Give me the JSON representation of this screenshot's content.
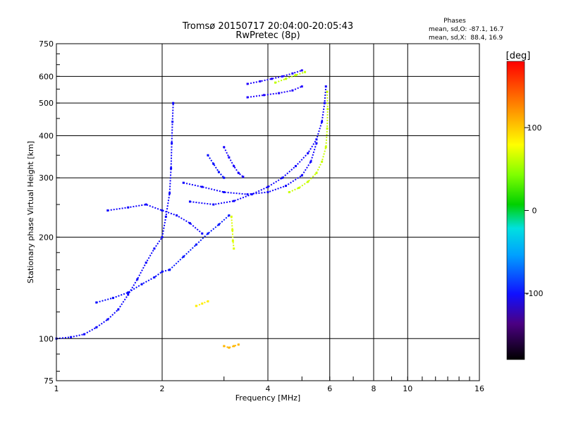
{
  "chart_data": {
    "type": "scatter",
    "title": "Tromsø 20150717 20:04:00-20:05:43",
    "subtitle": "RwPretec (8p)",
    "xlabel": "Frequency [MHz]",
    "ylabel": "Stationary phase Virtual Height [km]",
    "x_scale": "log",
    "y_scale": "log",
    "xlim": [
      1,
      16
    ],
    "ylim": [
      75,
      750
    ],
    "x_ticks": [
      1,
      2,
      4,
      6,
      8,
      10,
      16
    ],
    "x_tick_labels": [
      "1",
      "2",
      "4",
      "6",
      "8",
      "10",
      "16"
    ],
    "y_ticks": [
      75,
      100,
      200,
      300,
      400,
      500,
      600,
      750
    ],
    "y_tick_labels": [
      "75",
      "100",
      "200",
      "300",
      "400",
      "500",
      "600",
      "750"
    ],
    "grid": true,
    "stats": {
      "title": "Phases",
      "line_o": "mean, sd,O: -87.1, 16.7",
      "line_x": "mean, sd,X:  88.4, 16.9"
    },
    "colorbar": {
      "label": "[deg]",
      "range": [
        -180,
        180
      ],
      "ticks": [
        100,
        0,
        -100
      ],
      "tick_labels": [
        "100",
        "0",
        "-100"
      ]
    },
    "traces": [
      {
        "phase": -105,
        "points": [
          [
            1.0,
            100
          ],
          [
            1.1,
            101
          ],
          [
            1.2,
            103
          ],
          [
            1.3,
            108
          ],
          [
            1.4,
            114
          ],
          [
            1.5,
            122
          ],
          [
            1.6,
            135
          ],
          [
            1.7,
            150
          ],
          [
            1.8,
            168
          ],
          [
            1.9,
            185
          ],
          [
            2.0,
            200
          ],
          [
            2.05,
            230
          ],
          [
            2.1,
            270
          ],
          [
            2.12,
            320
          ],
          [
            2.13,
            380
          ],
          [
            2.14,
            440
          ],
          [
            2.15,
            500
          ]
        ]
      },
      {
        "phase": -100,
        "points": [
          [
            1.3,
            128
          ],
          [
            1.45,
            132
          ],
          [
            1.6,
            137
          ],
          [
            1.75,
            145
          ],
          [
            1.9,
            152
          ],
          [
            2.0,
            158
          ],
          [
            2.1,
            160
          ]
        ]
      },
      {
        "phase": -108,
        "points": [
          [
            1.4,
            240
          ],
          [
            1.6,
            245
          ],
          [
            1.8,
            250
          ],
          [
            2.0,
            240
          ],
          [
            2.2,
            232
          ],
          [
            2.4,
            220
          ],
          [
            2.6,
            205
          ]
        ]
      },
      {
        "phase": -95,
        "points": [
          [
            2.1,
            160
          ],
          [
            2.3,
            175
          ],
          [
            2.5,
            190
          ],
          [
            2.7,
            205
          ],
          [
            2.9,
            218
          ],
          [
            3.1,
            232
          ]
        ]
      },
      {
        "phase": -110,
        "points": [
          [
            2.4,
            255
          ],
          [
            2.8,
            250
          ],
          [
            3.2,
            256
          ],
          [
            3.6,
            268
          ],
          [
            4.0,
            282
          ],
          [
            4.4,
            300
          ],
          [
            4.8,
            325
          ],
          [
            5.2,
            355
          ],
          [
            5.5,
            390
          ],
          [
            5.7,
            440
          ],
          [
            5.8,
            500
          ],
          [
            5.85,
            560
          ]
        ]
      },
      {
        "phase": -108,
        "points": [
          [
            2.3,
            290
          ],
          [
            2.6,
            282
          ],
          [
            3.0,
            272
          ],
          [
            3.5,
            268
          ],
          [
            4.0,
            272
          ],
          [
            4.5,
            284
          ],
          [
            5.0,
            305
          ],
          [
            5.3,
            335
          ],
          [
            5.5,
            380
          ]
        ]
      },
      {
        "phase": -120,
        "points": [
          [
            3.5,
            570
          ],
          [
            3.8,
            580
          ],
          [
            4.1,
            590
          ],
          [
            4.4,
            600
          ],
          [
            4.7,
            612
          ],
          [
            5.0,
            625
          ]
        ]
      },
      {
        "phase": -118,
        "points": [
          [
            3.5,
            520
          ],
          [
            3.9,
            528
          ],
          [
            4.3,
            535
          ],
          [
            4.7,
            545
          ],
          [
            5.0,
            560
          ]
        ]
      },
      {
        "phase": -115,
        "points": [
          [
            3.0,
            370
          ],
          [
            3.1,
            345
          ],
          [
            3.2,
            325
          ],
          [
            3.3,
            310
          ],
          [
            3.4,
            302
          ]
        ]
      },
      {
        "phase": -98,
        "points": [
          [
            2.7,
            350
          ],
          [
            2.8,
            330
          ],
          [
            2.9,
            312
          ],
          [
            3.0,
            300
          ]
        ]
      },
      {
        "phase": 95,
        "points": [
          [
            4.6,
            272
          ],
          [
            4.9,
            280
          ],
          [
            5.2,
            292
          ],
          [
            5.5,
            310
          ],
          [
            5.7,
            335
          ],
          [
            5.85,
            370
          ],
          [
            5.9,
            420
          ],
          [
            5.92,
            480
          ],
          [
            5.9,
            540
          ]
        ]
      },
      {
        "phase": 92,
        "points": [
          [
            4.2,
            575
          ],
          [
            4.5,
            590
          ],
          [
            4.8,
            605
          ],
          [
            5.1,
            618
          ]
        ]
      },
      {
        "phase": 100,
        "points": [
          [
            3.15,
            230
          ],
          [
            3.17,
            210
          ],
          [
            3.18,
            195
          ],
          [
            3.2,
            185
          ]
        ]
      },
      {
        "phase": 130,
        "points": [
          [
            3.0,
            95
          ],
          [
            3.1,
            94
          ],
          [
            3.2,
            95
          ],
          [
            3.3,
            96
          ]
        ]
      },
      {
        "phase": 115,
        "points": [
          [
            2.5,
            125
          ],
          [
            2.6,
            127
          ],
          [
            2.7,
            129
          ]
        ]
      }
    ]
  }
}
